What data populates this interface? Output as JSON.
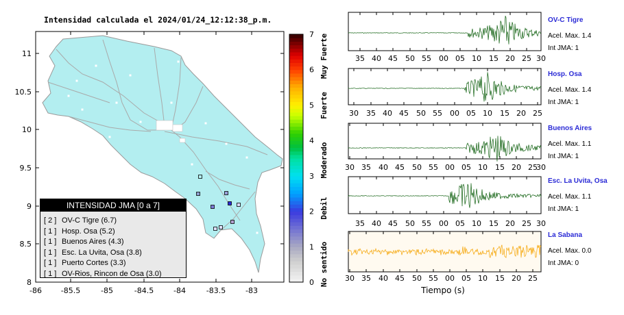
{
  "title": "Intensidad calculada el 2024/01/24_12:12:38_p.m.",
  "map": {
    "x_ticks": [
      "-86",
      "-85.5",
      "-85",
      "-84.5",
      "-84",
      "-83.5",
      "-83"
    ],
    "y_ticks": [
      "11",
      "10.5",
      "10",
      "9.5",
      "9",
      "8.5",
      "8"
    ]
  },
  "scale": {
    "ticks": [
      "0",
      "1",
      "2",
      "3",
      "4",
      "5",
      "6",
      "7"
    ],
    "category_labels": [
      "No sentido",
      "Debil",
      "Moderado",
      "Fuerte",
      "Muy Fuerte"
    ]
  },
  "legend": {
    "header": "INTENSIDAD JMA [0 a 7]",
    "items": [
      {
        "count": "[ 2 ]",
        "text": "OV-C Tigre (6.7)"
      },
      {
        "count": "[ 1 ]",
        "text": "Hosp. Osa (5.2)"
      },
      {
        "count": "[ 1 ]",
        "text": "Buenos Aires (4.3)"
      },
      {
        "count": "[ 1 ]",
        "text": "Esc. La Uvita, Osa (3.8)"
      },
      {
        "count": "[ 1 ]",
        "text": "Puerto Cortes (3.3)"
      },
      {
        "count": "[ 1 ]",
        "text": "OV-Rios, Rincon de Osa (3.0)"
      }
    ]
  },
  "stations": [
    {
      "name": "OV-C Tigre",
      "acel": "Acel. Max. 1.4",
      "int": "Int JMA: 1",
      "color": "#0b5d0b",
      "ticks": [
        "35",
        "40",
        "45",
        "50",
        "55",
        "00",
        "05",
        "10",
        "15",
        "20",
        "25",
        "30"
      ]
    },
    {
      "name": "Hosp. Osa",
      "acel": "Acel. Max. 1.4",
      "int": "Int JMA: 1",
      "color": "#0b5d0b",
      "ticks": [
        "30",
        "35",
        "40",
        "45",
        "50",
        "55",
        "00",
        "05",
        "10",
        "15",
        "20",
        "25"
      ]
    },
    {
      "name": "Buenos Aires",
      "acel": "Acel. Max. 1.1",
      "int": "Int JMA: 1",
      "color": "#0b5d0b",
      "ticks": [
        "30",
        "35",
        "40",
        "45",
        "50",
        "55",
        "00",
        "05",
        "10",
        "15",
        "20",
        "25",
        "30"
      ]
    },
    {
      "name": "Esc. La Uvita, Osa",
      "acel": "Acel. Max. 1.1",
      "int": "Int JMA: 1",
      "color": "#0b5d0b",
      "ticks": [
        "35",
        "40",
        "45",
        "50",
        "55",
        "00",
        "05",
        "10",
        "15",
        "20",
        "25",
        "30"
      ]
    },
    {
      "name": "La Sabana",
      "acel": "Acel. Max. 0.0",
      "int": "Int JMA: 0",
      "color": "#f5a300",
      "ticks": [
        "30",
        "35",
        "40",
        "45",
        "50",
        "55",
        "00",
        "05",
        "10",
        "15",
        "20",
        "25"
      ]
    }
  ],
  "xlabel": "Tiempo (s)",
  "colors": {
    "land": "#b3eef0",
    "roads": "#a9a9a9"
  },
  "chart_data": [
    {
      "type": "scatter",
      "title": "Intensidad calculada el 2024/01/24_12:12:38_p.m.",
      "xlim": [
        -86,
        -82.5
      ],
      "ylim": [
        8,
        11.3
      ],
      "points": [
        {
          "station": "OV-C Tigre",
          "jma": 6.7
        },
        {
          "station": "Hosp. Osa",
          "jma": 5.2
        },
        {
          "station": "Buenos Aires",
          "jma": 4.3
        },
        {
          "station": "Esc. La Uvita, Osa",
          "jma": 3.8
        },
        {
          "station": "Puerto Cortes",
          "jma": 3.3
        },
        {
          "station": "OV-Rios, Rincon de Osa",
          "jma": 3.0
        }
      ]
    },
    {
      "type": "line",
      "xlabel": "Tiempo (s)",
      "series": [
        {
          "name": "OV-C Tigre",
          "acel_max": 1.4,
          "int_jma": 1
        },
        {
          "name": "Hosp. Osa",
          "acel_max": 1.4,
          "int_jma": 1
        },
        {
          "name": "Buenos Aires",
          "acel_max": 1.1,
          "int_jma": 1
        },
        {
          "name": "Esc. La Uvita, Osa",
          "acel_max": 1.1,
          "int_jma": 1
        },
        {
          "name": "La Sabana",
          "acel_max": 0.0,
          "int_jma": 0
        }
      ]
    }
  ]
}
